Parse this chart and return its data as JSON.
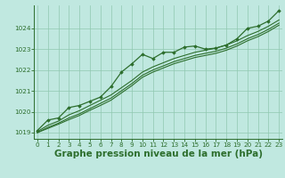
{
  "background_color": "#c0e8e0",
  "grid_color": "#90c8b0",
  "line_color": "#2d6e2d",
  "marker_color": "#2d6e2d",
  "xlabel": "Graphe pression niveau de la mer (hPa)",
  "xlabel_fontsize": 7.5,
  "ylim": [
    1018.7,
    1025.1
  ],
  "xlim": [
    -0.3,
    23.3
  ],
  "yticks": [
    1019,
    1020,
    1021,
    1022,
    1023,
    1024
  ],
  "xticks": [
    0,
    1,
    2,
    3,
    4,
    5,
    6,
    7,
    8,
    9,
    10,
    11,
    12,
    13,
    14,
    15,
    16,
    17,
    18,
    19,
    20,
    21,
    22,
    23
  ],
  "series_jagged": [
    1019.1,
    1019.6,
    1019.7,
    1020.2,
    1020.3,
    1020.5,
    1020.7,
    1021.2,
    1021.9,
    1022.3,
    1022.75,
    1022.55,
    1022.85,
    1022.85,
    1023.1,
    1023.15,
    1023.0,
    1023.05,
    1023.2,
    1023.5,
    1024.0,
    1024.1,
    1024.35,
    1024.85
  ],
  "series_smooth": [
    [
      1019.05,
      1019.35,
      1019.55,
      1019.85,
      1020.05,
      1020.3,
      1020.55,
      1020.8,
      1021.15,
      1021.5,
      1021.9,
      1022.15,
      1022.35,
      1022.55,
      1022.7,
      1022.85,
      1022.95,
      1023.05,
      1023.2,
      1023.4,
      1023.65,
      1023.85,
      1024.1,
      1024.4
    ],
    [
      1019.0,
      1019.25,
      1019.45,
      1019.7,
      1019.9,
      1020.15,
      1020.4,
      1020.65,
      1021.0,
      1021.35,
      1021.75,
      1022.0,
      1022.2,
      1022.4,
      1022.55,
      1022.7,
      1022.8,
      1022.9,
      1023.05,
      1023.25,
      1023.5,
      1023.7,
      1023.95,
      1024.25
    ],
    [
      1019.0,
      1019.2,
      1019.4,
      1019.62,
      1019.82,
      1020.07,
      1020.3,
      1020.55,
      1020.9,
      1021.25,
      1021.65,
      1021.9,
      1022.1,
      1022.3,
      1022.45,
      1022.6,
      1022.7,
      1022.8,
      1022.95,
      1023.15,
      1023.4,
      1023.6,
      1023.85,
      1024.15
    ]
  ]
}
